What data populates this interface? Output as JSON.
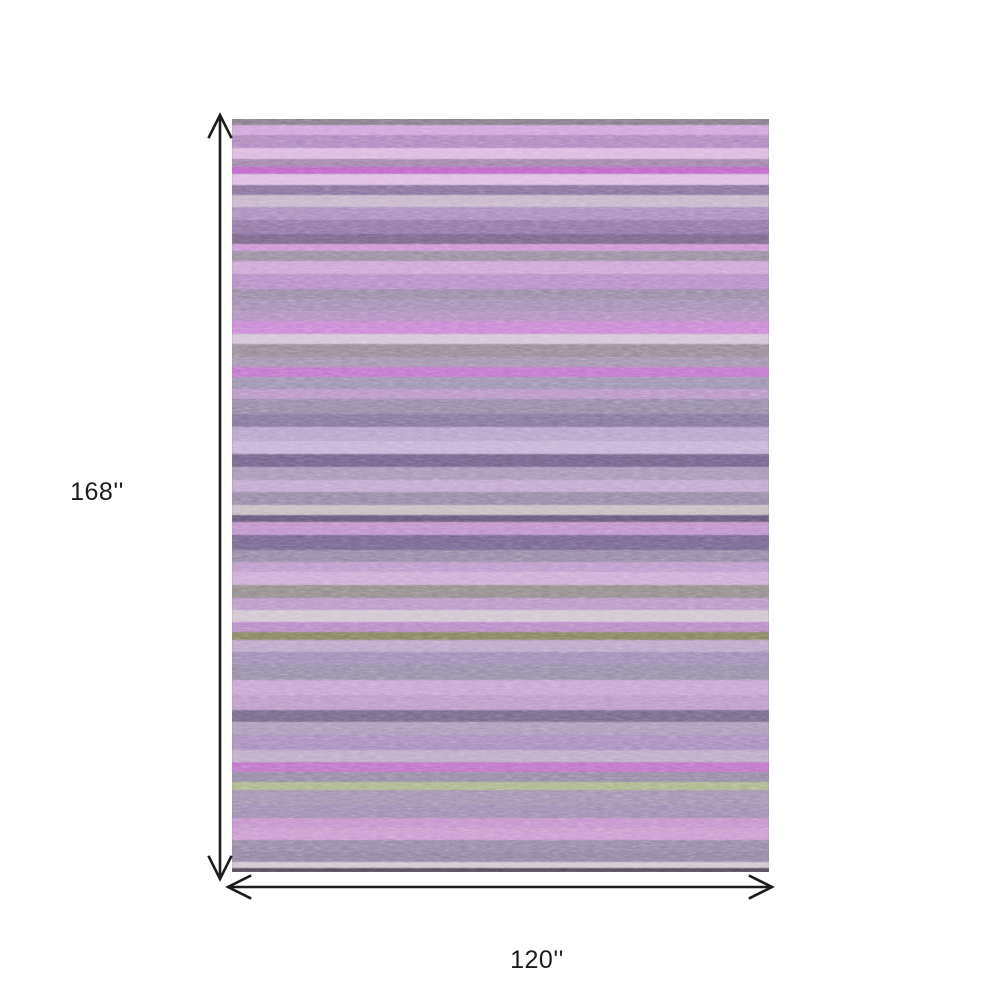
{
  "page": {
    "background_color": "#ffffff"
  },
  "dimensions": {
    "height_label": "168''",
    "width_label": "120''",
    "line_color": "#1c1c1c",
    "text_color": "#1c1c1c"
  },
  "rug": {
    "description": "purple heathered horizontal striped area rug",
    "border_color": "#5a4e64",
    "accent_colors": {
      "orchid": "#c77ed2",
      "magenta": "#b95ec4",
      "olive": "#7c7c5e",
      "lavender": "#d8b5dc"
    },
    "stripes": [
      {
        "h": 6,
        "c": "#7d737f"
      },
      {
        "h": 10,
        "c": "#cb9ed6"
      },
      {
        "h": 13,
        "c": "#a87fb8"
      },
      {
        "h": 11,
        "c": "#d8b5dc"
      },
      {
        "h": 8,
        "c": "#9b7ba5"
      },
      {
        "h": 7,
        "c": "#b95ec4"
      },
      {
        "h": 11,
        "c": "#dcb8e0"
      },
      {
        "h": 10,
        "c": "#7f6c94"
      },
      {
        "h": 12,
        "c": "#c3b0c8"
      },
      {
        "h": 13,
        "c": "#a384b6"
      },
      {
        "h": 14,
        "c": "#8a70a0"
      },
      {
        "h": 10,
        "c": "#71617f"
      },
      {
        "h": 7,
        "c": "#c68ed0"
      },
      {
        "h": 10,
        "c": "#93849b"
      },
      {
        "h": 13,
        "c": "#c7a0d2"
      },
      {
        "h": 15,
        "c": "#b286c4"
      },
      {
        "h": 10,
        "c": "#92819e"
      },
      {
        "h": 12,
        "c": "#9d86ae"
      },
      {
        "h": 10,
        "c": "#ab89bb"
      },
      {
        "h": 13,
        "c": "#c77ed2"
      },
      {
        "h": 10,
        "c": "#d2bfd5"
      },
      {
        "h": 13,
        "c": "#90818f"
      },
      {
        "h": 10,
        "c": "#9c8ba8"
      },
      {
        "h": 10,
        "c": "#bd6ec8"
      },
      {
        "h": 12,
        "c": "#978aa8"
      },
      {
        "h": 10,
        "c": "#b38fc2"
      },
      {
        "h": 15,
        "c": "#8d81a0"
      },
      {
        "h": 13,
        "c": "#7b6e94"
      },
      {
        "h": 14,
        "c": "#b29dc6"
      },
      {
        "h": 13,
        "c": "#c2add2"
      },
      {
        "h": 13,
        "c": "#6d5e80"
      },
      {
        "h": 12,
        "c": "#a190b1"
      },
      {
        "h": 12,
        "c": "#bda2cb"
      },
      {
        "h": 13,
        "c": "#8f7f9e"
      },
      {
        "h": 10,
        "c": "#c3b8bf"
      },
      {
        "h": 7,
        "c": "#615570"
      },
      {
        "h": 13,
        "c": "#b98bc8"
      },
      {
        "h": 15,
        "c": "#6f6184"
      },
      {
        "h": 12,
        "c": "#8d809e"
      },
      {
        "h": 10,
        "c": "#b893c5"
      },
      {
        "h": 13,
        "c": "#c8a7d2"
      },
      {
        "h": 13,
        "c": "#8b8384"
      },
      {
        "h": 12,
        "c": "#b491c2"
      },
      {
        "h": 12,
        "c": "#cec1ce"
      },
      {
        "h": 10,
        "c": "#b281c3"
      },
      {
        "h": 8,
        "c": "#7c7c5e"
      },
      {
        "h": 12,
        "c": "#b7a0c5"
      },
      {
        "h": 13,
        "c": "#9884ae"
      },
      {
        "h": 15,
        "c": "#8e85a0"
      },
      {
        "h": 15,
        "c": "#c29dd0"
      },
      {
        "h": 15,
        "c": "#b793c3"
      },
      {
        "h": 12,
        "c": "#6e6380"
      },
      {
        "h": 13,
        "c": "#a593b4"
      },
      {
        "h": 15,
        "c": "#a284b8"
      },
      {
        "h": 12,
        "c": "#b8a4c3"
      },
      {
        "h": 10,
        "c": "#b96cc3"
      },
      {
        "h": 10,
        "c": "#8d809f"
      },
      {
        "h": 8,
        "c": "#a6b183"
      },
      {
        "h": 15,
        "c": "#9b89aa"
      },
      {
        "h": 13,
        "c": "#9784ab"
      },
      {
        "h": 10,
        "c": "#bf8bca"
      },
      {
        "h": 12,
        "c": "#c793cc"
      },
      {
        "h": 12,
        "c": "#8d809e"
      },
      {
        "h": 10,
        "c": "#887b99"
      },
      {
        "h": 6,
        "c": "#cec3ce"
      },
      {
        "h": 4,
        "c": "#4f4553"
      }
    ]
  }
}
